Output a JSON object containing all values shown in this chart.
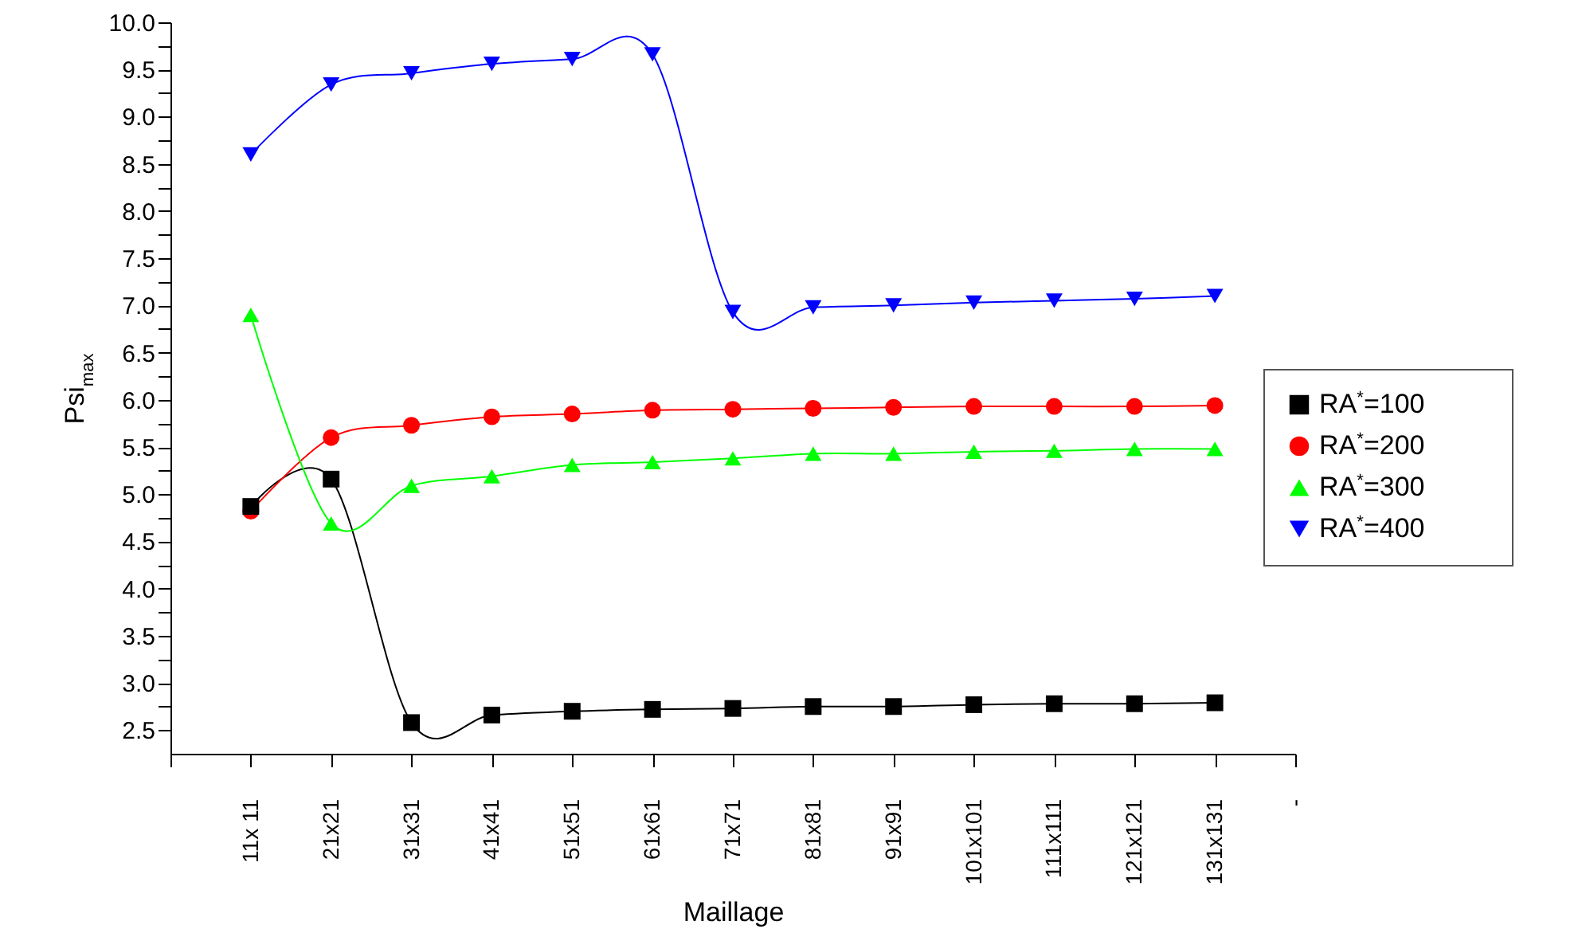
{
  "chart_data": {
    "type": "line",
    "xlabel": "Maillage",
    "ylabel": "Psi$_{max}$",
    "categories": [
      null,
      "11x 11",
      "21x21",
      "31x31",
      "41x41",
      "51x51",
      "61x61",
      "71x71",
      "81x81",
      "91x91",
      "101x101",
      "111x111",
      "121x121",
      "131x131",
      "-"
    ],
    "series": [
      {
        "name": "RA$^{*}$=100",
        "color": "#000000",
        "marker": "square",
        "values": [
          null,
          4.87,
          5.16,
          2.58,
          2.66,
          2.7,
          2.72,
          2.73,
          2.75,
          2.75,
          2.77,
          2.78,
          2.78,
          2.79,
          null
        ]
      },
      {
        "name": "RA$^{*}$=200",
        "color": "#ff0000",
        "marker": "circle",
        "values": [
          null,
          4.82,
          5.6,
          5.73,
          5.82,
          5.85,
          5.89,
          5.9,
          5.91,
          5.92,
          5.93,
          5.93,
          5.93,
          5.94,
          null
        ]
      },
      {
        "name": "RA$^{*}$=300",
        "color": "#00ff00",
        "marker": "triangle",
        "values": [
          null,
          6.9,
          4.69,
          5.09,
          5.19,
          5.31,
          5.34,
          5.38,
          5.43,
          5.43,
          5.45,
          5.46,
          5.48,
          5.48,
          null
        ]
      },
      {
        "name": "RA$^{*}$=400",
        "color": "#0000ff",
        "marker": "triangle-down",
        "values": [
          null,
          8.6,
          9.34,
          9.46,
          9.56,
          9.61,
          9.66,
          6.93,
          6.98,
          7.0,
          7.03,
          7.05,
          7.07,
          7.1,
          null
        ]
      }
    ],
    "ylim": [
      2.25,
      10.0
    ],
    "yticks": [
      2.5,
      {
        "value": 2.75,
        "label": null
      },
      {
        "value": 3,
        "label": "3.0"
      },
      {
        "value": 3.25,
        "label": null
      },
      3.5,
      {
        "value": 3.75,
        "label": null
      },
      {
        "value": 4,
        "label": "4.0"
      },
      {
        "value": 4.25,
        "label": null
      },
      4.5,
      {
        "value": 4.75,
        "label": null
      },
      {
        "value": 5,
        "label": "5.0"
      },
      {
        "value": 5.25,
        "label": null
      },
      5.5,
      {
        "value": 5.75,
        "label": null
      },
      {
        "value": 6,
        "label": "6.0"
      },
      {
        "value": 6.25,
        "label": null
      },
      6.5,
      {
        "value": 6.75,
        "label": null
      },
      {
        "value": 7,
        "label": "7.0"
      },
      {
        "value": 7.25,
        "label": null
      },
      7.5,
      {
        "value": 7.75,
        "label": null
      },
      {
        "value": 8,
        "label": "8.0"
      },
      {
        "value": 8.25,
        "label": null
      },
      8.5,
      {
        "value": 8.75,
        "label": null
      },
      {
        "value": 9,
        "label": "9.0"
      },
      {
        "value": 9.25,
        "label": null
      },
      9.5,
      {
        "value": 9.75,
        "label": null
      },
      {
        "value": 10,
        "label": "10.0"
      }
    ],
    "legend": "right",
    "grid": false
  }
}
